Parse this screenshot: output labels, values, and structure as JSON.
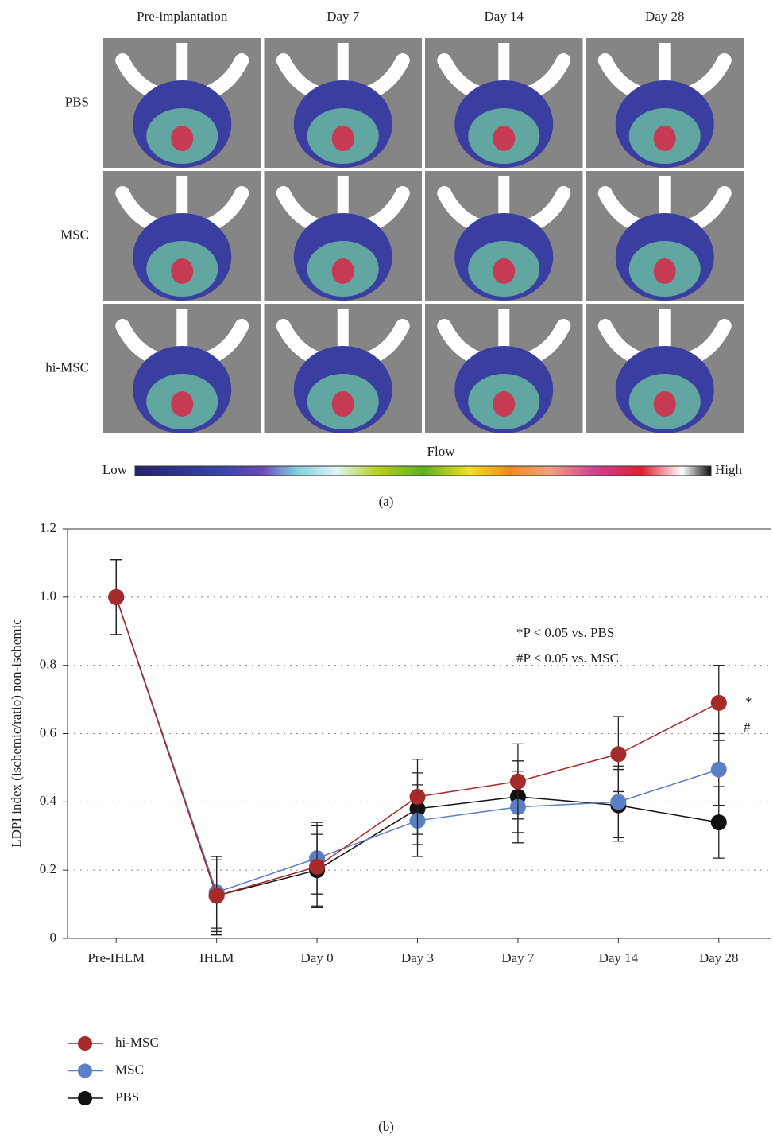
{
  "panel_a": {
    "columns": [
      "Pre-implantation",
      "Day 7",
      "Day 14",
      "Day 28"
    ],
    "rows": [
      "PBS",
      "MSC",
      "hi-MSC"
    ],
    "colorbar_title": "Flow",
    "colorbar_low": "Low",
    "colorbar_high": "High",
    "caption": "(a)"
  },
  "chart_data": {
    "type": "line",
    "y_label": "LDPI index (ischemic/ratio) non-ischemic",
    "categories": [
      "Pre-IHLM",
      "IHLM",
      "Day 0",
      "Day 3",
      "Day 7",
      "Day 14",
      "Day 28"
    ],
    "series": [
      {
        "name": "hi-MSC",
        "color": "#a52a2a",
        "values": [
          1.0,
          0.125,
          0.21,
          0.415,
          0.46,
          0.54,
          0.69
        ],
        "errors": [
          0.11,
          0.115,
          0.12,
          0.11,
          0.11,
          0.11,
          0.11
        ]
      },
      {
        "name": "MSC",
        "color": "#5b7fc4",
        "values": [
          1.0,
          0.135,
          0.235,
          0.345,
          0.385,
          0.4,
          0.495
        ],
        "errors": [
          0.11,
          0.105,
          0.105,
          0.105,
          0.105,
          0.105,
          0.105
        ]
      },
      {
        "name": "PBS",
        "color": "#111111",
        "values": [
          1.0,
          0.125,
          0.2,
          0.38,
          0.415,
          0.39,
          0.34
        ],
        "errors": [
          0.11,
          0.105,
          0.105,
          0.105,
          0.105,
          0.105,
          0.105
        ]
      }
    ],
    "ylim": [
      0,
      1.2
    ],
    "yticks": [
      0,
      0.2,
      0.4,
      0.6,
      0.8,
      {
        "value": 1,
        "label": "1.0"
      },
      1.2
    ],
    "grid": true,
    "annotations": [
      "*P < 0.05 vs. PBS",
      "#P < 0.05 vs. MSC",
      "*",
      "#"
    ],
    "caption": "(b)"
  }
}
